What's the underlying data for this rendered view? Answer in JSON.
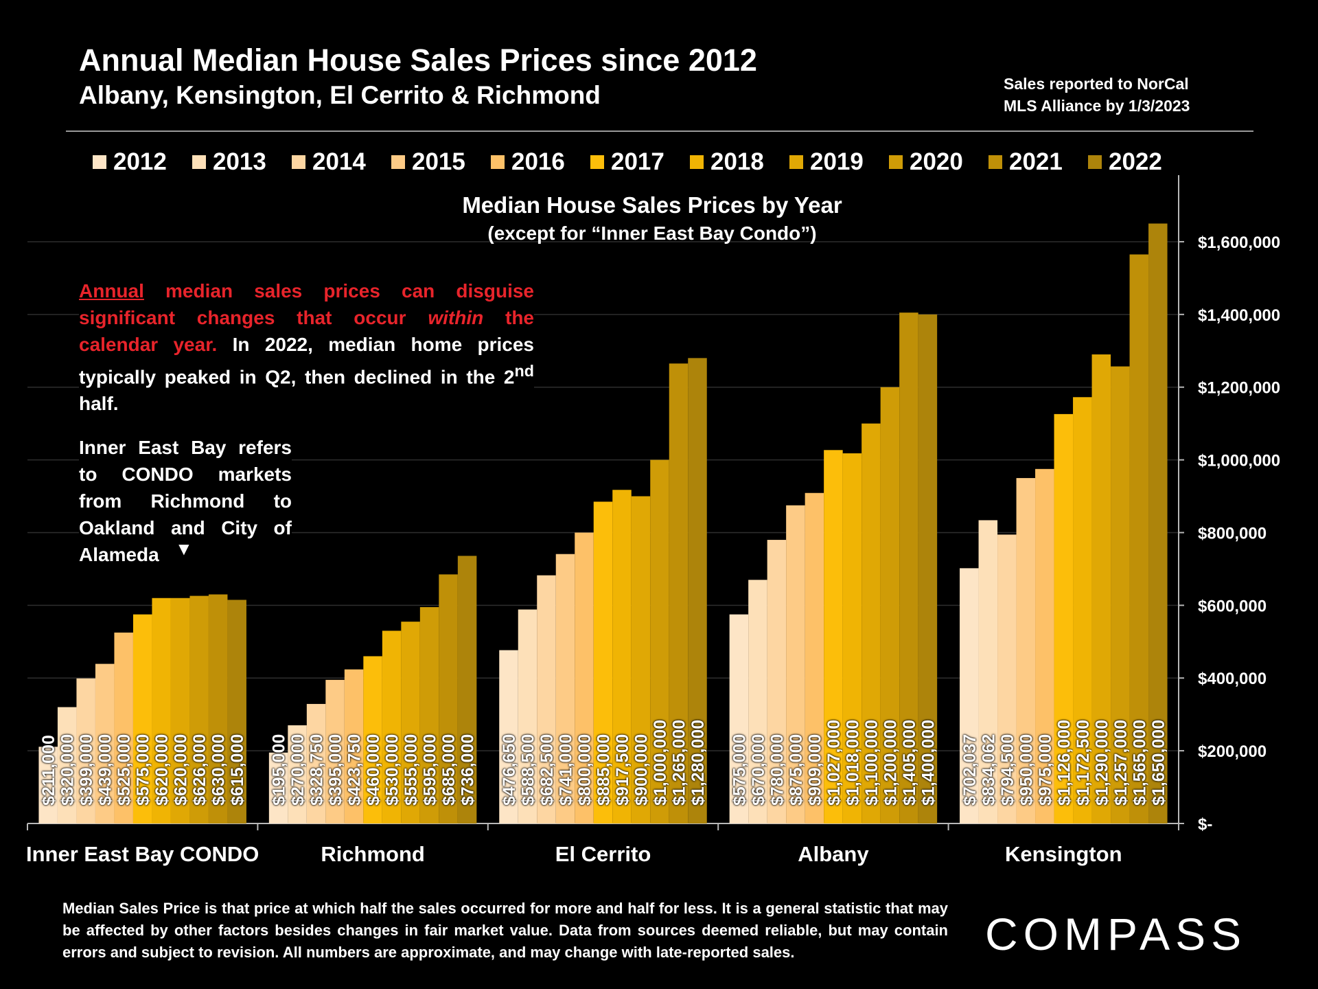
{
  "header": {
    "title": "Annual Median House Sales Prices since 2012",
    "subtitle": "Albany, Kensington, El Cerrito & Richmond",
    "source_line1": "Sales reported to NorCal",
    "source_line2": "MLS Alliance by 1/3/2023"
  },
  "chart_heading": {
    "line1": "Median House Sales Prices by Year",
    "line2": "(except for “Inner East Bay Condo”)"
  },
  "note": {
    "red_underlined": "Annual",
    "red_part1": " median sales prices can disguise significant changes that occur ",
    "red_italic": "within",
    "red_part2": " the calendar year.",
    "white_part": " In 2022, median home prices typically peaked in Q2, then declined in the 2",
    "superscript": "nd",
    "white_end": " half."
  },
  "condo_note": {
    "text": "Inner East Bay refers to CONDO markets from Richmond to Oakland and City of Alameda",
    "arrow": "▼"
  },
  "footnote": "Median Sales Price is that price at which half the sales occurred for more and half for less. It is a general statistic that may be affected by other factors besides changes in fair market value. Data from sources deemed reliable, but may contain errors and subject to revision.  All numbers are approximate, and may change with late-reported sales.",
  "logo": "COMPASS",
  "colors": {
    "background": "#000000",
    "note_red": "#e8242b",
    "years": [
      "#fde5c6",
      "#fde0b8",
      "#fdd6a2",
      "#fdcb86",
      "#fdc168",
      "#fcbe0a",
      "#f0b404",
      "#e0a805",
      "#cf9c07",
      "#bf9008",
      "#ad840b"
    ]
  },
  "chart_data": {
    "type": "bar",
    "title": "Median House Sales Prices by Year",
    "categories": [
      "Inner East Bay CONDO",
      "Richmond",
      "El Cerrito",
      "Albany",
      "Kensington"
    ],
    "ylim": [
      0,
      1700000
    ],
    "yticks": [
      0,
      200000,
      400000,
      600000,
      800000,
      1000000,
      1200000,
      1400000,
      1600000
    ],
    "ytick_labels": [
      "$-",
      "$200,000",
      "$400,000",
      "$600,000",
      "$800,000",
      "$1,000,000",
      "$1,200,000",
      "$1,400,000",
      "$1,600,000"
    ],
    "legend_position": "top",
    "series": [
      {
        "name": "2012",
        "values": [
          211000,
          195000,
          476650,
          575000,
          702037
        ],
        "labels": [
          "$211,000",
          "$195,000",
          "$476,650",
          "$575,000",
          "$702,037"
        ]
      },
      {
        "name": "2013",
        "values": [
          320000,
          270000,
          588500,
          670000,
          834062
        ],
        "labels": [
          "$320,000",
          "$270,000",
          "$588,500",
          "$670,000",
          "$834,062"
        ]
      },
      {
        "name": "2014",
        "values": [
          399000,
          328750,
          682500,
          780000,
          794500
        ],
        "labels": [
          "$399,000",
          "$328,750",
          "$682,500",
          "$780,000",
          "$794,500"
        ]
      },
      {
        "name": "2015",
        "values": [
          439000,
          395000,
          741000,
          875000,
          950000
        ],
        "labels": [
          "$439,000",
          "$395,000",
          "$741,000",
          "$875,000",
          "$950,000"
        ]
      },
      {
        "name": "2016",
        "values": [
          525000,
          423750,
          800000,
          909000,
          975000
        ],
        "labels": [
          "$525,000",
          "$423,750",
          "$800,000",
          "$909,000",
          "$975,000"
        ]
      },
      {
        "name": "2017",
        "values": [
          575000,
          460000,
          885000,
          1027000,
          1126000
        ],
        "labels": [
          "$575,000",
          "$460,000",
          "$885,000",
          "$1,027,000",
          "$1,126,000"
        ]
      },
      {
        "name": "2018",
        "values": [
          620000,
          530000,
          917500,
          1018000,
          1172500
        ],
        "labels": [
          "$620,000",
          "$530,000",
          "$917,500",
          "$1,018,000",
          "$1,172,500"
        ]
      },
      {
        "name": "2019",
        "values": [
          620000,
          555000,
          900000,
          1100000,
          1290000
        ],
        "labels": [
          "$620,000",
          "$555,000",
          "$900,000",
          "$1,100,000",
          "$1,290,000"
        ]
      },
      {
        "name": "2020",
        "values": [
          626000,
          595000,
          1000000,
          1200000,
          1257000
        ],
        "labels": [
          "$626,000",
          "$595,000",
          "$1,000,000",
          "$1,200,000",
          "$1,257,000"
        ]
      },
      {
        "name": "2021",
        "values": [
          630000,
          685000,
          1265000,
          1405000,
          1565000
        ],
        "labels": [
          "$630,000",
          "$685,000",
          "$1,265,000",
          "$1,405,000",
          "$1,565,000"
        ]
      },
      {
        "name": "2022",
        "values": [
          615000,
          736000,
          1280000,
          1400000,
          1650000
        ],
        "labels": [
          "$615,000",
          "$736,000",
          "$1,280,000",
          "$1,400,000",
          "$1,650,000"
        ]
      }
    ]
  }
}
